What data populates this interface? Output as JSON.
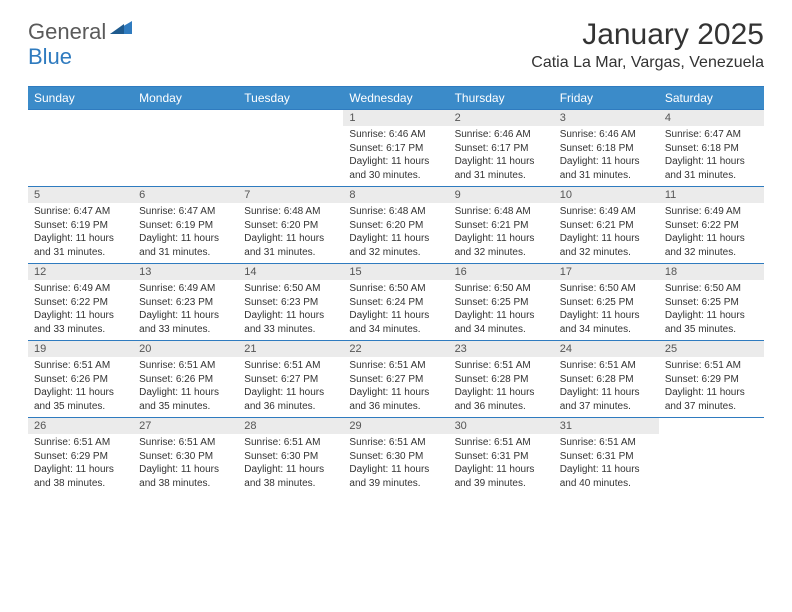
{
  "logo": {
    "part1": "General",
    "part2": "Blue"
  },
  "title": "January 2025",
  "location": "Catia La Mar, Vargas, Venezuela",
  "colors": {
    "header_bg": "#3b8bc9",
    "border": "#2f7bbf",
    "daynum_bg": "#ebebeb",
    "text": "#333333"
  },
  "day_names": [
    "Sunday",
    "Monday",
    "Tuesday",
    "Wednesday",
    "Thursday",
    "Friday",
    "Saturday"
  ],
  "weeks": [
    [
      null,
      null,
      null,
      {
        "n": "1",
        "sr": "6:46 AM",
        "ss": "6:17 PM",
        "dl": "11 hours and 30 minutes."
      },
      {
        "n": "2",
        "sr": "6:46 AM",
        "ss": "6:17 PM",
        "dl": "11 hours and 31 minutes."
      },
      {
        "n": "3",
        "sr": "6:46 AM",
        "ss": "6:18 PM",
        "dl": "11 hours and 31 minutes."
      },
      {
        "n": "4",
        "sr": "6:47 AM",
        "ss": "6:18 PM",
        "dl": "11 hours and 31 minutes."
      }
    ],
    [
      {
        "n": "5",
        "sr": "6:47 AM",
        "ss": "6:19 PM",
        "dl": "11 hours and 31 minutes."
      },
      {
        "n": "6",
        "sr": "6:47 AM",
        "ss": "6:19 PM",
        "dl": "11 hours and 31 minutes."
      },
      {
        "n": "7",
        "sr": "6:48 AM",
        "ss": "6:20 PM",
        "dl": "11 hours and 31 minutes."
      },
      {
        "n": "8",
        "sr": "6:48 AM",
        "ss": "6:20 PM",
        "dl": "11 hours and 32 minutes."
      },
      {
        "n": "9",
        "sr": "6:48 AM",
        "ss": "6:21 PM",
        "dl": "11 hours and 32 minutes."
      },
      {
        "n": "10",
        "sr": "6:49 AM",
        "ss": "6:21 PM",
        "dl": "11 hours and 32 minutes."
      },
      {
        "n": "11",
        "sr": "6:49 AM",
        "ss": "6:22 PM",
        "dl": "11 hours and 32 minutes."
      }
    ],
    [
      {
        "n": "12",
        "sr": "6:49 AM",
        "ss": "6:22 PM",
        "dl": "11 hours and 33 minutes."
      },
      {
        "n": "13",
        "sr": "6:49 AM",
        "ss": "6:23 PM",
        "dl": "11 hours and 33 minutes."
      },
      {
        "n": "14",
        "sr": "6:50 AM",
        "ss": "6:23 PM",
        "dl": "11 hours and 33 minutes."
      },
      {
        "n": "15",
        "sr": "6:50 AM",
        "ss": "6:24 PM",
        "dl": "11 hours and 34 minutes."
      },
      {
        "n": "16",
        "sr": "6:50 AM",
        "ss": "6:25 PM",
        "dl": "11 hours and 34 minutes."
      },
      {
        "n": "17",
        "sr": "6:50 AM",
        "ss": "6:25 PM",
        "dl": "11 hours and 34 minutes."
      },
      {
        "n": "18",
        "sr": "6:50 AM",
        "ss": "6:25 PM",
        "dl": "11 hours and 35 minutes."
      }
    ],
    [
      {
        "n": "19",
        "sr": "6:51 AM",
        "ss": "6:26 PM",
        "dl": "11 hours and 35 minutes."
      },
      {
        "n": "20",
        "sr": "6:51 AM",
        "ss": "6:26 PM",
        "dl": "11 hours and 35 minutes."
      },
      {
        "n": "21",
        "sr": "6:51 AM",
        "ss": "6:27 PM",
        "dl": "11 hours and 36 minutes."
      },
      {
        "n": "22",
        "sr": "6:51 AM",
        "ss": "6:27 PM",
        "dl": "11 hours and 36 minutes."
      },
      {
        "n": "23",
        "sr": "6:51 AM",
        "ss": "6:28 PM",
        "dl": "11 hours and 36 minutes."
      },
      {
        "n": "24",
        "sr": "6:51 AM",
        "ss": "6:28 PM",
        "dl": "11 hours and 37 minutes."
      },
      {
        "n": "25",
        "sr": "6:51 AM",
        "ss": "6:29 PM",
        "dl": "11 hours and 37 minutes."
      }
    ],
    [
      {
        "n": "26",
        "sr": "6:51 AM",
        "ss": "6:29 PM",
        "dl": "11 hours and 38 minutes."
      },
      {
        "n": "27",
        "sr": "6:51 AM",
        "ss": "6:30 PM",
        "dl": "11 hours and 38 minutes."
      },
      {
        "n": "28",
        "sr": "6:51 AM",
        "ss": "6:30 PM",
        "dl": "11 hours and 38 minutes."
      },
      {
        "n": "29",
        "sr": "6:51 AM",
        "ss": "6:30 PM",
        "dl": "11 hours and 39 minutes."
      },
      {
        "n": "30",
        "sr": "6:51 AM",
        "ss": "6:31 PM",
        "dl": "11 hours and 39 minutes."
      },
      {
        "n": "31",
        "sr": "6:51 AM",
        "ss": "6:31 PM",
        "dl": "11 hours and 40 minutes."
      },
      null
    ]
  ],
  "labels": {
    "sunrise": "Sunrise:",
    "sunset": "Sunset:",
    "daylight": "Daylight:"
  }
}
